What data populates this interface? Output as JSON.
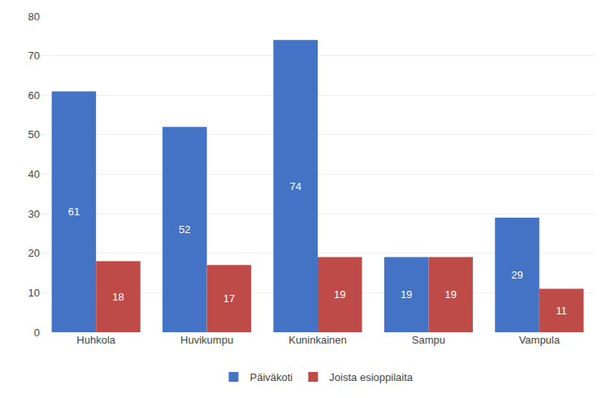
{
  "chart_data": {
    "type": "bar",
    "categories": [
      "Huhkola",
      "Huvikumpu",
      "Kuninkainen",
      "Sampu",
      "Vampula"
    ],
    "series": [
      {
        "name": "Päiväkoti",
        "color": "#4472c4",
        "values": [
          61,
          52,
          74,
          19,
          29
        ]
      },
      {
        "name": "Joista esioppilaita",
        "color": "#be4b48",
        "values": [
          18,
          17,
          19,
          19,
          11
        ]
      }
    ],
    "ylim": [
      0,
      80
    ],
    "yticks": [
      0,
      10,
      20,
      30,
      40,
      50,
      60,
      70,
      80
    ],
    "grid": true,
    "legend": "bottom",
    "data_labels": true
  }
}
